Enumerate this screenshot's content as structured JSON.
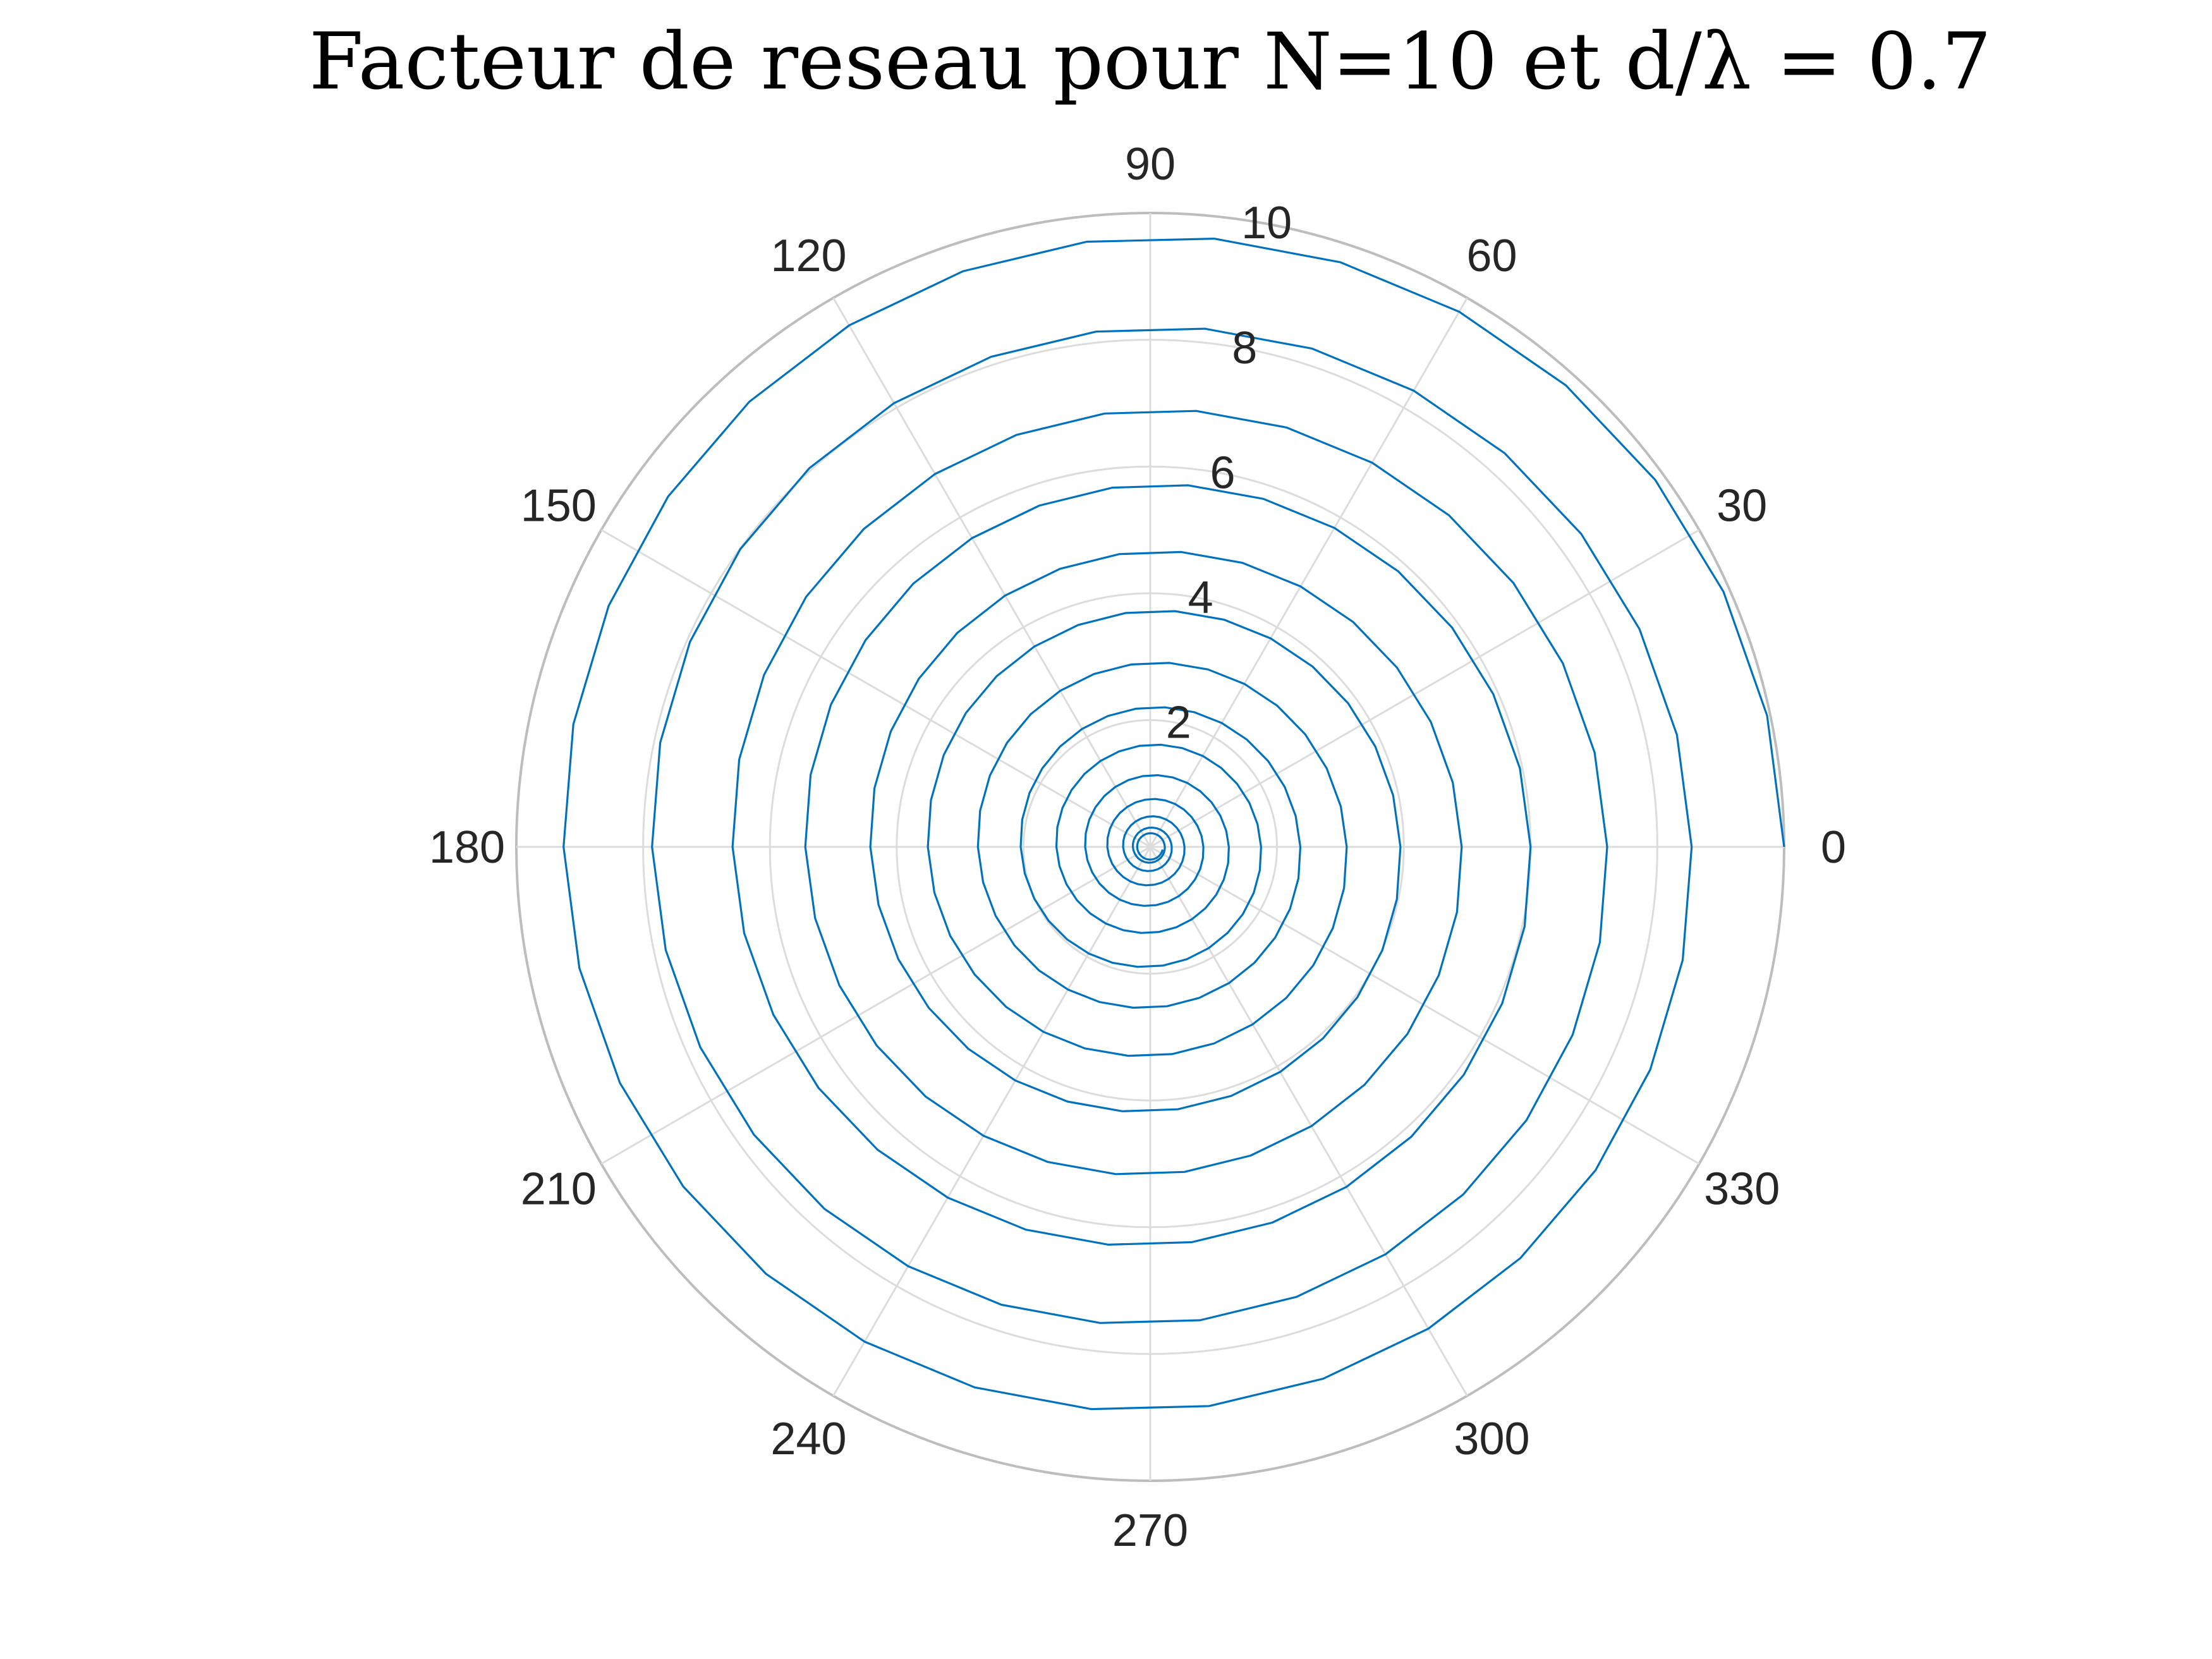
{
  "chart_data": {
    "type": "line",
    "coordinate_system": "polar",
    "title": "Facteur de reseau pour N=10 et d/λ = 0.7",
    "theta_ticks": [
      "0",
      "30",
      "60",
      "90",
      "120",
      "150",
      "180",
      "210",
      "240",
      "270",
      "300",
      "330"
    ],
    "r_ticks": [
      "2",
      "4",
      "6",
      "8",
      "10"
    ],
    "r_lim": [
      0,
      10
    ],
    "theta_direction": "counterclockwise",
    "theta_zero_location": "east",
    "grid": true,
    "legend": false,
    "colors": {
      "series": "#0072bd",
      "grid": "#dcdcdc",
      "outer": "#bdbdbd",
      "text": "#262626"
    },
    "series": [
      {
        "theta_deg_start": 0,
        "theta_deg_step": 12,
        "r_start": 10,
        "r_end": 0.2,
        "decay_exponent": 0.65,
        "point_count": 420
      }
    ]
  }
}
